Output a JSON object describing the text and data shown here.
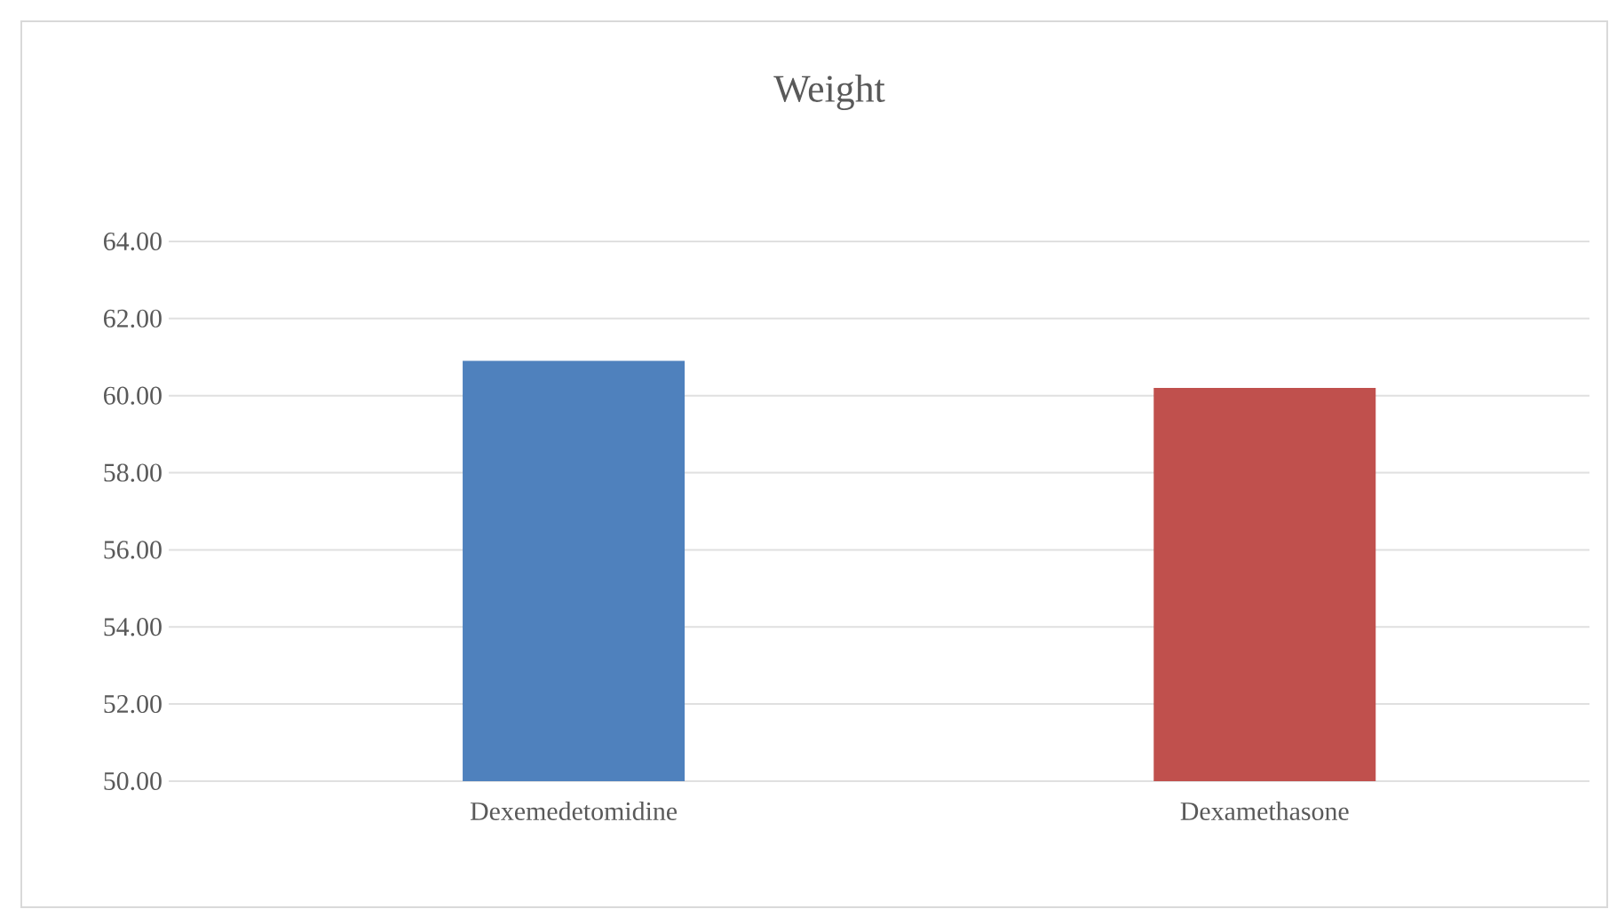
{
  "chart_data": {
    "type": "bar",
    "title": "Weight",
    "categories": [
      "Dexemedetomidine",
      "Dexamethasone"
    ],
    "values": [
      60.9,
      60.2
    ],
    "colors": [
      "#4f81bd",
      "#c0504d"
    ],
    "ylim": [
      50,
      64
    ],
    "yticks": [
      {
        "value": 50,
        "label": "50.00"
      },
      {
        "value": 52,
        "label": "52.00"
      },
      {
        "value": 54,
        "label": "54.00"
      },
      {
        "value": 56,
        "label": "56.00"
      },
      {
        "value": 58,
        "label": "58.00"
      },
      {
        "value": 60,
        "label": "60.00"
      },
      {
        "value": 62,
        "label": "62.00"
      },
      {
        "value": 64,
        "label": "64.00"
      }
    ],
    "grid": "y"
  }
}
